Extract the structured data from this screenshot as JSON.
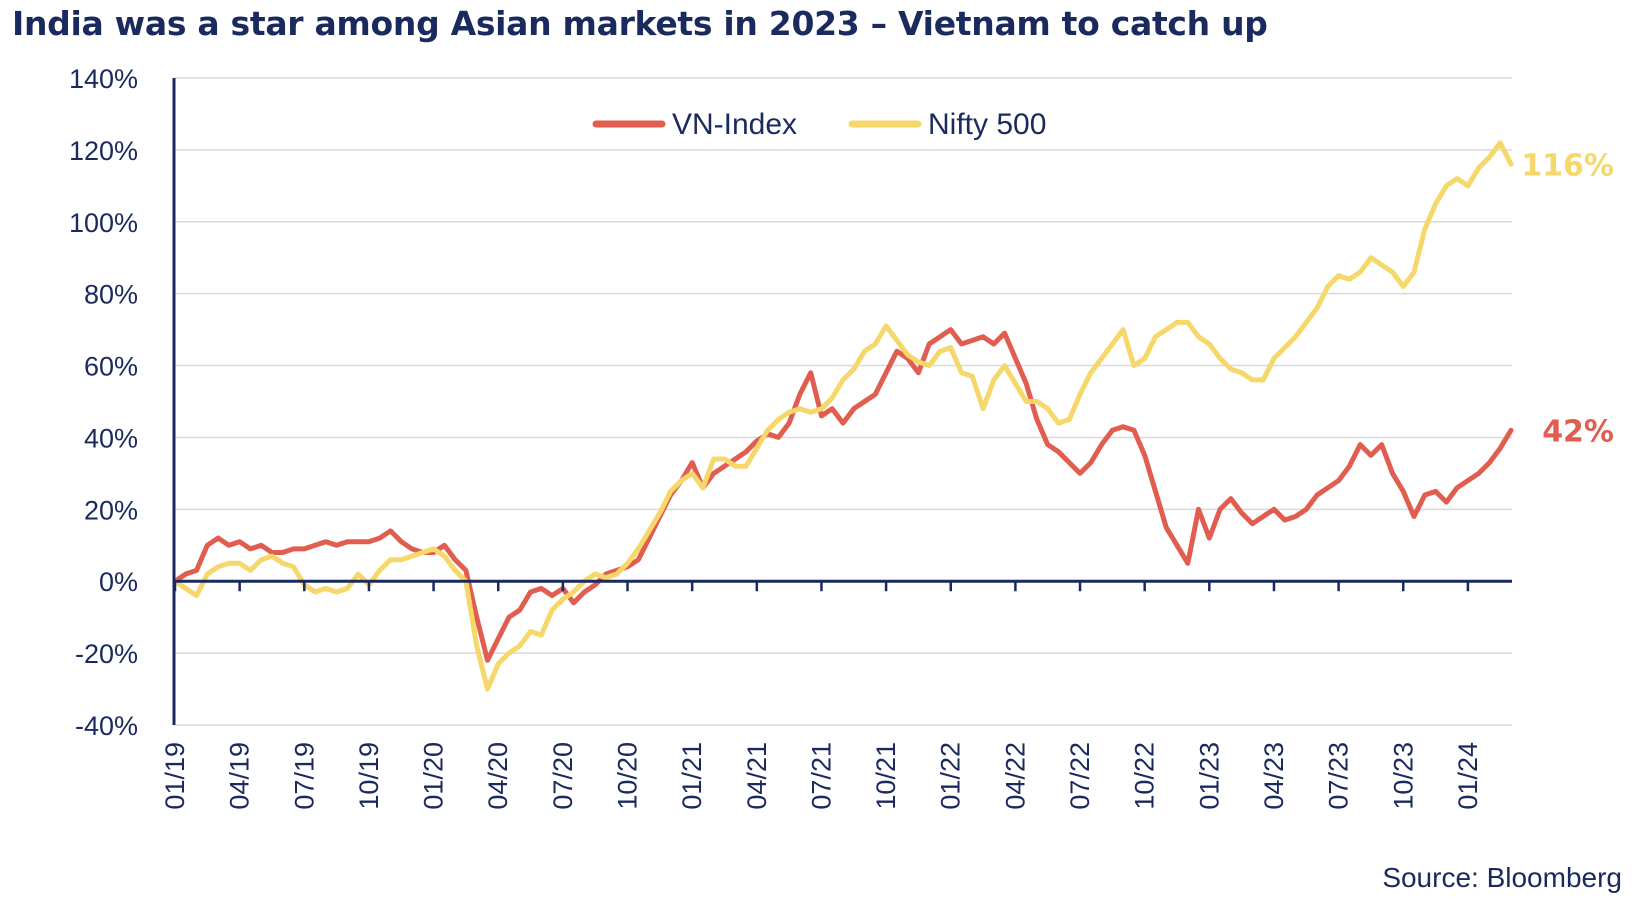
{
  "chart_data": {
    "type": "line",
    "title": "India was a star among Asian markets in 2023 – Vietnam to catch up",
    "xlabel": "",
    "ylabel": "",
    "ylim": [
      -40,
      140
    ],
    "y_ticks": [
      -40,
      -20,
      0,
      20,
      40,
      60,
      80,
      100,
      120,
      140
    ],
    "y_tick_labels": [
      "-40%",
      "-20%",
      "0%",
      "20%",
      "40%",
      "60%",
      "80%",
      "100%",
      "120%",
      "140%"
    ],
    "x_ticks": [
      {
        "label": "01/19",
        "t": 0
      },
      {
        "label": "04/19",
        "t": 3
      },
      {
        "label": "07/19",
        "t": 6
      },
      {
        "label": "10/19",
        "t": 9
      },
      {
        "label": "01/20",
        "t": 12
      },
      {
        "label": "04/20",
        "t": 15
      },
      {
        "label": "07/20",
        "t": 18
      },
      {
        "label": "10/20",
        "t": 21
      },
      {
        "label": "01/21",
        "t": 24
      },
      {
        "label": "04/21",
        "t": 27
      },
      {
        "label": "07/21",
        "t": 30
      },
      {
        "label": "10/21",
        "t": 33
      },
      {
        "label": "01/22",
        "t": 36
      },
      {
        "label": "04/22",
        "t": 39
      },
      {
        "label": "07/22",
        "t": 42
      },
      {
        "label": "10/22",
        "t": 45
      },
      {
        "label": "01/23",
        "t": 48
      },
      {
        "label": "04/23",
        "t": 51
      },
      {
        "label": "07/23",
        "t": 54
      },
      {
        "label": "10/23",
        "t": 57
      },
      {
        "label": "01/24",
        "t": 60
      }
    ],
    "x_range": [
      0,
      62
    ],
    "legend": {
      "position": "top-center"
    },
    "grid": true,
    "series": [
      {
        "name": "VN-Index",
        "color": "#e05d4f",
        "end_label": "42%",
        "points": [
          [
            0,
            0
          ],
          [
            0.5,
            2
          ],
          [
            1,
            3
          ],
          [
            1.5,
            10
          ],
          [
            2,
            12
          ],
          [
            2.5,
            10
          ],
          [
            3,
            11
          ],
          [
            3.5,
            9
          ],
          [
            4,
            10
          ],
          [
            4.5,
            8
          ],
          [
            5,
            8
          ],
          [
            5.5,
            9
          ],
          [
            6,
            9
          ],
          [
            6.5,
            10
          ],
          [
            7,
            11
          ],
          [
            7.5,
            10
          ],
          [
            8,
            11
          ],
          [
            8.5,
            11
          ],
          [
            9,
            11
          ],
          [
            9.5,
            12
          ],
          [
            10,
            14
          ],
          [
            10.5,
            11
          ],
          [
            11,
            9
          ],
          [
            11.5,
            8
          ],
          [
            12,
            8
          ],
          [
            12.5,
            10
          ],
          [
            13,
            6
          ],
          [
            13.5,
            3
          ],
          [
            14,
            -10
          ],
          [
            14.5,
            -22
          ],
          [
            15,
            -16
          ],
          [
            15.5,
            -10
          ],
          [
            16,
            -8
          ],
          [
            16.5,
            -3
          ],
          [
            17,
            -2
          ],
          [
            17.5,
            -4
          ],
          [
            18,
            -2
          ],
          [
            18.5,
            -6
          ],
          [
            19,
            -3
          ],
          [
            19.5,
            -1
          ],
          [
            20,
            2
          ],
          [
            20.5,
            3
          ],
          [
            21,
            4
          ],
          [
            21.5,
            6
          ],
          [
            22,
            12
          ],
          [
            22.5,
            18
          ],
          [
            23,
            24
          ],
          [
            23.5,
            28
          ],
          [
            24,
            33
          ],
          [
            24.5,
            26
          ],
          [
            25,
            30
          ],
          [
            25.5,
            32
          ],
          [
            26,
            34
          ],
          [
            26.5,
            36
          ],
          [
            27,
            39
          ],
          [
            27.5,
            41
          ],
          [
            28,
            40
          ],
          [
            28.5,
            44
          ],
          [
            29,
            52
          ],
          [
            29.5,
            58
          ],
          [
            30,
            46
          ],
          [
            30.5,
            48
          ],
          [
            31,
            44
          ],
          [
            31.5,
            48
          ],
          [
            32,
            50
          ],
          [
            32.5,
            52
          ],
          [
            33,
            58
          ],
          [
            33.5,
            64
          ],
          [
            34,
            62
          ],
          [
            34.5,
            58
          ],
          [
            35,
            66
          ],
          [
            35.5,
            68
          ],
          [
            36,
            70
          ],
          [
            36.5,
            66
          ],
          [
            37,
            67
          ],
          [
            37.5,
            68
          ],
          [
            38,
            66
          ],
          [
            38.5,
            69
          ],
          [
            39,
            62
          ],
          [
            39.5,
            55
          ],
          [
            40,
            45
          ],
          [
            40.5,
            38
          ],
          [
            41,
            36
          ],
          [
            41.5,
            33
          ],
          [
            42,
            30
          ],
          [
            42.5,
            33
          ],
          [
            43,
            38
          ],
          [
            43.5,
            42
          ],
          [
            44,
            43
          ],
          [
            44.5,
            42
          ],
          [
            45,
            35
          ],
          [
            45.5,
            25
          ],
          [
            46,
            15
          ],
          [
            46.5,
            10
          ],
          [
            47,
            5
          ],
          [
            47.5,
            20
          ],
          [
            48,
            12
          ],
          [
            48.5,
            20
          ],
          [
            49,
            23
          ],
          [
            49.5,
            19
          ],
          [
            50,
            16
          ],
          [
            50.5,
            18
          ],
          [
            51,
            20
          ],
          [
            51.5,
            17
          ],
          [
            52,
            18
          ],
          [
            52.5,
            20
          ],
          [
            53,
            24
          ],
          [
            53.5,
            26
          ],
          [
            54,
            28
          ],
          [
            54.5,
            32
          ],
          [
            55,
            38
          ],
          [
            55.5,
            35
          ],
          [
            56,
            38
          ],
          [
            56.5,
            30
          ],
          [
            57,
            25
          ],
          [
            57.5,
            18
          ],
          [
            58,
            24
          ],
          [
            58.5,
            25
          ],
          [
            59,
            22
          ],
          [
            59.5,
            26
          ],
          [
            60,
            28
          ],
          [
            60.5,
            30
          ],
          [
            61,
            33
          ],
          [
            61.5,
            37
          ],
          [
            62,
            42
          ]
        ]
      },
      {
        "name": "Nifty 500",
        "color": "#f5d76a",
        "end_label": "116%",
        "points": [
          [
            0,
            0
          ],
          [
            0.5,
            -2
          ],
          [
            1,
            -4
          ],
          [
            1.5,
            2
          ],
          [
            2,
            4
          ],
          [
            2.5,
            5
          ],
          [
            3,
            5
          ],
          [
            3.5,
            3
          ],
          [
            4,
            6
          ],
          [
            4.5,
            7
          ],
          [
            5,
            5
          ],
          [
            5.5,
            4
          ],
          [
            6,
            -1
          ],
          [
            6.5,
            -3
          ],
          [
            7,
            -2
          ],
          [
            7.5,
            -3
          ],
          [
            8,
            -2
          ],
          [
            8.5,
            2
          ],
          [
            9,
            -1
          ],
          [
            9.5,
            3
          ],
          [
            10,
            6
          ],
          [
            10.5,
            6
          ],
          [
            11,
            7
          ],
          [
            11.5,
            8
          ],
          [
            12,
            9
          ],
          [
            12.5,
            7
          ],
          [
            13,
            3
          ],
          [
            13.5,
            0
          ],
          [
            14,
            -18
          ],
          [
            14.5,
            -30
          ],
          [
            15,
            -23
          ],
          [
            15.5,
            -20
          ],
          [
            16,
            -18
          ],
          [
            16.5,
            -14
          ],
          [
            17,
            -15
          ],
          [
            17.5,
            -8
          ],
          [
            18,
            -5
          ],
          [
            18.5,
            -3
          ],
          [
            19,
            0
          ],
          [
            19.5,
            2
          ],
          [
            20,
            1
          ],
          [
            20.5,
            2
          ],
          [
            21,
            5
          ],
          [
            21.5,
            9
          ],
          [
            22,
            14
          ],
          [
            22.5,
            19
          ],
          [
            23,
            25
          ],
          [
            23.5,
            28
          ],
          [
            24,
            30
          ],
          [
            24.5,
            26
          ],
          [
            25,
            34
          ],
          [
            25.5,
            34
          ],
          [
            26,
            32
          ],
          [
            26.5,
            32
          ],
          [
            27,
            37
          ],
          [
            27.5,
            42
          ],
          [
            28,
            45
          ],
          [
            28.5,
            47
          ],
          [
            29,
            48
          ],
          [
            29.5,
            47
          ],
          [
            30,
            48
          ],
          [
            30.5,
            51
          ],
          [
            31,
            56
          ],
          [
            31.5,
            59
          ],
          [
            32,
            64
          ],
          [
            32.5,
            66
          ],
          [
            33,
            71
          ],
          [
            33.5,
            67
          ],
          [
            34,
            63
          ],
          [
            34.5,
            61
          ],
          [
            35,
            60
          ],
          [
            35.5,
            64
          ],
          [
            36,
            65
          ],
          [
            36.5,
            58
          ],
          [
            37,
            57
          ],
          [
            37.5,
            48
          ],
          [
            38,
            56
          ],
          [
            38.5,
            60
          ],
          [
            39,
            55
          ],
          [
            39.5,
            50
          ],
          [
            40,
            50
          ],
          [
            40.5,
            48
          ],
          [
            41,
            44
          ],
          [
            41.5,
            45
          ],
          [
            42,
            52
          ],
          [
            42.5,
            58
          ],
          [
            43,
            62
          ],
          [
            43.5,
            66
          ],
          [
            44,
            70
          ],
          [
            44.5,
            60
          ],
          [
            45,
            62
          ],
          [
            45.5,
            68
          ],
          [
            46,
            70
          ],
          [
            46.5,
            72
          ],
          [
            47,
            72
          ],
          [
            47.5,
            68
          ],
          [
            48,
            66
          ],
          [
            48.5,
            62
          ],
          [
            49,
            59
          ],
          [
            49.5,
            58
          ],
          [
            50,
            56
          ],
          [
            50.5,
            56
          ],
          [
            51,
            62
          ],
          [
            51.5,
            65
          ],
          [
            52,
            68
          ],
          [
            52.5,
            72
          ],
          [
            53,
            76
          ],
          [
            53.5,
            82
          ],
          [
            54,
            85
          ],
          [
            54.5,
            84
          ],
          [
            55,
            86
          ],
          [
            55.5,
            90
          ],
          [
            56,
            88
          ],
          [
            56.5,
            86
          ],
          [
            57,
            82
          ],
          [
            57.5,
            86
          ],
          [
            58,
            98
          ],
          [
            58.5,
            105
          ],
          [
            59,
            110
          ],
          [
            59.5,
            112
          ],
          [
            60,
            110
          ],
          [
            60.5,
            115
          ],
          [
            61,
            118
          ],
          [
            61.5,
            122
          ],
          [
            62,
            116
          ]
        ]
      }
    ]
  },
  "source": "Source: Bloomberg"
}
